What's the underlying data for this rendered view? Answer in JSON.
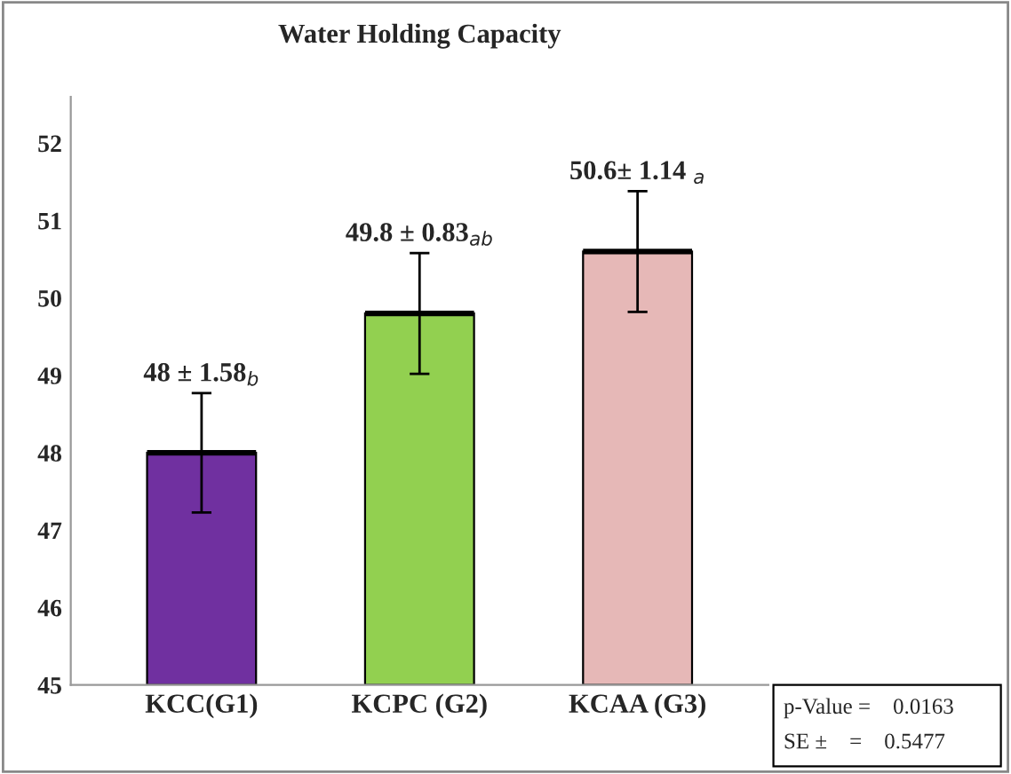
{
  "chart_data": {
    "type": "bar",
    "title": "Water Holding Capacity",
    "categories": [
      "KCC(G1)",
      "KCPC (G2)",
      "KCAA (G3)"
    ],
    "values": [
      48,
      49.8,
      50.6
    ],
    "colors": [
      "#7030a0",
      "#92d050",
      "#e6b8b7"
    ],
    "errors": [
      0.77,
      0.78,
      0.78
    ],
    "value_labels": [
      "48 ± 1.58$_{b}$",
      "49.8 ± 0.83$_{ab}$",
      "50.6± 1.14 $_{a}$"
    ],
    "ylim": [
      45,
      52.6
    ],
    "yticks": [
      45,
      46,
      47,
      48,
      49,
      50,
      51,
      52
    ],
    "grid": false,
    "legend": false,
    "annotations": [
      "p-Value =    0.0163",
      "SE ±    =    0.5477"
    ]
  }
}
